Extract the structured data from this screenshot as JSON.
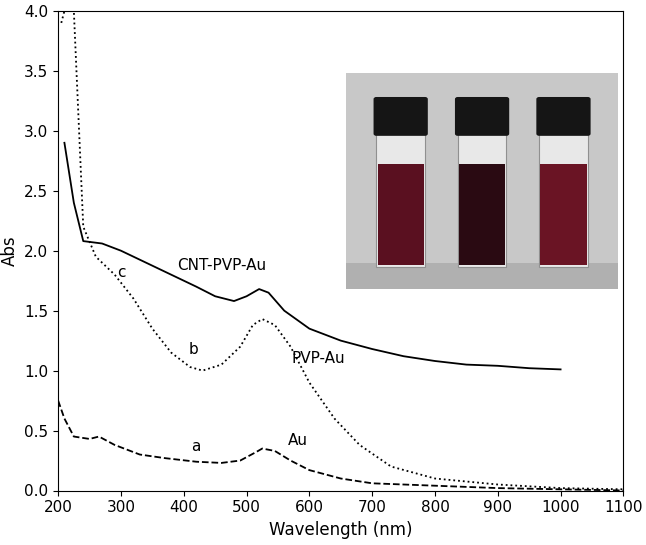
{
  "chart_data": {
    "type": "line",
    "x_label": "Wavelength (nm)",
    "y_label": "Abs",
    "xlim": [
      200,
      1100
    ],
    "xticks": [
      200,
      300,
      400,
      500,
      600,
      700,
      800,
      900,
      1000,
      1100
    ],
    "ylim": [
      0,
      4
    ],
    "yticks": [
      {
        "value": 0,
        "label": "0.0"
      },
      {
        "value": 0.5,
        "label": "0.5"
      },
      {
        "value": 1,
        "label": "1.0"
      },
      {
        "value": 1.5,
        "label": "1.5"
      },
      {
        "value": 2,
        "label": "2.0"
      },
      {
        "value": 2.5,
        "label": "2.5"
      },
      {
        "value": 3,
        "label": "3.0"
      },
      {
        "value": 3.5,
        "label": "3.5"
      },
      {
        "value": 4,
        "label": "4.0"
      }
    ],
    "series": [
      {
        "name": "Au",
        "color": "#000000",
        "line_style": "dashed",
        "x": [
          200,
          210,
          225,
          250,
          265,
          290,
          330,
          370,
          420,
          460,
          490,
          515,
          525,
          545,
          570,
          600,
          650,
          700,
          800,
          900,
          1000,
          1100
        ],
        "values": [
          0.75,
          0.6,
          0.45,
          0.43,
          0.45,
          0.38,
          0.3,
          0.27,
          0.24,
          0.23,
          0.25,
          0.32,
          0.35,
          0.33,
          0.25,
          0.17,
          0.1,
          0.06,
          0.04,
          0.02,
          0.01,
          0.0
        ]
      },
      {
        "name": "PVP-Au",
        "color": "#000000",
        "line_style": "dotted",
        "x": [
          205,
          210,
          225,
          240,
          260,
          290,
          320,
          350,
          380,
          410,
          430,
          460,
          490,
          510,
          525,
          545,
          570,
          600,
          640,
          680,
          730,
          800,
          900,
          1000,
          1100
        ],
        "values": [
          3.9,
          4.0,
          4.0,
          2.2,
          1.95,
          1.8,
          1.6,
          1.35,
          1.15,
          1.03,
          1.0,
          1.05,
          1.2,
          1.38,
          1.43,
          1.38,
          1.2,
          0.9,
          0.6,
          0.38,
          0.2,
          0.1,
          0.05,
          0.02,
          0.01
        ]
      },
      {
        "name": "CNT-PVP-Au",
        "color": "#000000",
        "line_style": "solid",
        "x": [
          210,
          225,
          240,
          270,
          300,
          340,
          380,
          420,
          450,
          480,
          500,
          520,
          535,
          560,
          600,
          650,
          700,
          750,
          800,
          850,
          900,
          950,
          1000
        ],
        "values": [
          2.9,
          2.4,
          2.08,
          2.06,
          2.0,
          1.9,
          1.8,
          1.7,
          1.62,
          1.58,
          1.62,
          1.68,
          1.65,
          1.5,
          1.35,
          1.25,
          1.18,
          1.12,
          1.08,
          1.05,
          1.04,
          1.02,
          1.01
        ]
      }
    ],
    "annotations": [
      {
        "text": "c",
        "x": 300,
        "y": 1.82
      },
      {
        "text": "CNT-PVP-Au",
        "x": 460,
        "y": 1.88
      },
      {
        "text": "b",
        "x": 415,
        "y": 1.18
      },
      {
        "text": "PVP-Au",
        "x": 615,
        "y": 1.1
      },
      {
        "text": "a",
        "x": 420,
        "y": 0.37
      },
      {
        "text": "Au",
        "x": 582,
        "y": 0.42
      }
    ]
  }
}
